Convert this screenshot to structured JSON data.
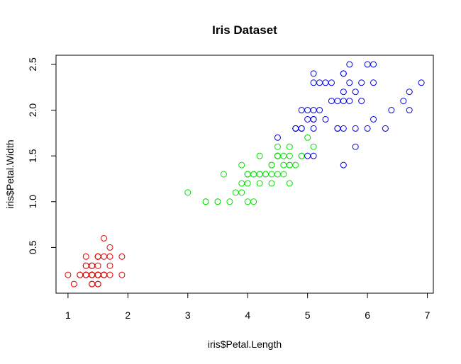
{
  "chart_data": {
    "type": "scatter",
    "title": "Iris Dataset",
    "xlabel": "iris$Petal.Length",
    "ylabel": "iris$Petal.Width",
    "xlim": [
      0.8,
      7.1
    ],
    "ylim": [
      0.0,
      2.6
    ],
    "xticks": [
      "1",
      "2",
      "3",
      "4",
      "5",
      "6",
      "7"
    ],
    "yticks": [
      "0.5",
      "1.0",
      "1.5",
      "2.0",
      "2.5"
    ],
    "grid": false,
    "legend": "none",
    "marker": "open-circle",
    "series": [
      {
        "color": "#e00000",
        "points": [
          [
            1.4,
            0.2
          ],
          [
            1.4,
            0.2
          ],
          [
            1.3,
            0.2
          ],
          [
            1.5,
            0.2
          ],
          [
            1.4,
            0.2
          ],
          [
            1.7,
            0.4
          ],
          [
            1.4,
            0.3
          ],
          [
            1.5,
            0.2
          ],
          [
            1.4,
            0.2
          ],
          [
            1.5,
            0.1
          ],
          [
            1.5,
            0.2
          ],
          [
            1.6,
            0.2
          ],
          [
            1.4,
            0.1
          ],
          [
            1.1,
            0.1
          ],
          [
            1.2,
            0.2
          ],
          [
            1.5,
            0.4
          ],
          [
            1.3,
            0.4
          ],
          [
            1.4,
            0.3
          ],
          [
            1.7,
            0.3
          ],
          [
            1.5,
            0.3
          ],
          [
            1.7,
            0.2
          ],
          [
            1.5,
            0.4
          ],
          [
            1.0,
            0.2
          ],
          [
            1.7,
            0.5
          ],
          [
            1.9,
            0.2
          ],
          [
            1.6,
            0.2
          ],
          [
            1.6,
            0.4
          ],
          [
            1.5,
            0.2
          ],
          [
            1.4,
            0.2
          ],
          [
            1.6,
            0.2
          ],
          [
            1.6,
            0.2
          ],
          [
            1.5,
            0.4
          ],
          [
            1.5,
            0.1
          ],
          [
            1.4,
            0.2
          ],
          [
            1.5,
            0.2
          ],
          [
            1.2,
            0.2
          ],
          [
            1.3,
            0.2
          ],
          [
            1.4,
            0.1
          ],
          [
            1.3,
            0.2
          ],
          [
            1.5,
            0.2
          ],
          [
            1.3,
            0.3
          ],
          [
            1.3,
            0.3
          ],
          [
            1.3,
            0.2
          ],
          [
            1.6,
            0.6
          ],
          [
            1.9,
            0.4
          ],
          [
            1.4,
            0.3
          ],
          [
            1.6,
            0.2
          ],
          [
            1.4,
            0.2
          ],
          [
            1.5,
            0.2
          ],
          [
            1.4,
            0.2
          ]
        ]
      },
      {
        "color": "#00e000",
        "points": [
          [
            4.7,
            1.4
          ],
          [
            4.5,
            1.5
          ],
          [
            4.9,
            1.5
          ],
          [
            4.0,
            1.3
          ],
          [
            4.6,
            1.5
          ],
          [
            4.5,
            1.3
          ],
          [
            4.7,
            1.6
          ],
          [
            3.3,
            1.0
          ],
          [
            4.6,
            1.3
          ],
          [
            3.9,
            1.4
          ],
          [
            3.5,
            1.0
          ],
          [
            4.2,
            1.5
          ],
          [
            4.0,
            1.0
          ],
          [
            4.7,
            1.4
          ],
          [
            3.6,
            1.3
          ],
          [
            4.4,
            1.4
          ],
          [
            4.5,
            1.5
          ],
          [
            4.1,
            1.0
          ],
          [
            4.5,
            1.5
          ],
          [
            3.9,
            1.1
          ],
          [
            4.8,
            1.8
          ],
          [
            4.0,
            1.3
          ],
          [
            4.9,
            1.5
          ],
          [
            4.7,
            1.2
          ],
          [
            4.3,
            1.3
          ],
          [
            4.4,
            1.4
          ],
          [
            4.8,
            1.4
          ],
          [
            5.0,
            1.7
          ],
          [
            4.5,
            1.5
          ],
          [
            3.5,
            1.0
          ],
          [
            3.8,
            1.1
          ],
          [
            3.7,
            1.0
          ],
          [
            3.9,
            1.2
          ],
          [
            5.1,
            1.6
          ],
          [
            4.5,
            1.5
          ],
          [
            4.5,
            1.6
          ],
          [
            4.7,
            1.5
          ],
          [
            4.4,
            1.3
          ],
          [
            4.1,
            1.3
          ],
          [
            4.0,
            1.3
          ],
          [
            4.4,
            1.2
          ],
          [
            4.6,
            1.4
          ],
          [
            4.0,
            1.2
          ],
          [
            3.3,
            1.0
          ],
          [
            4.2,
            1.3
          ],
          [
            4.2,
            1.2
          ],
          [
            4.2,
            1.3
          ],
          [
            4.3,
            1.3
          ],
          [
            3.0,
            1.1
          ],
          [
            4.1,
            1.3
          ]
        ]
      },
      {
        "color": "#0000e0",
        "points": [
          [
            6.0,
            2.5
          ],
          [
            5.1,
            1.9
          ],
          [
            5.9,
            2.1
          ],
          [
            5.6,
            1.8
          ],
          [
            5.8,
            2.2
          ],
          [
            6.6,
            2.1
          ],
          [
            4.5,
            1.7
          ],
          [
            6.3,
            1.8
          ],
          [
            5.8,
            1.8
          ],
          [
            6.1,
            2.5
          ],
          [
            5.1,
            2.0
          ],
          [
            5.3,
            1.9
          ],
          [
            5.5,
            2.1
          ],
          [
            5.0,
            2.0
          ],
          [
            5.1,
            2.4
          ],
          [
            5.3,
            2.3
          ],
          [
            5.5,
            1.8
          ],
          [
            6.7,
            2.2
          ],
          [
            6.9,
            2.3
          ],
          [
            5.0,
            1.5
          ],
          [
            5.7,
            2.3
          ],
          [
            4.9,
            2.0
          ],
          [
            6.7,
            2.0
          ],
          [
            4.9,
            1.8
          ],
          [
            5.7,
            2.1
          ],
          [
            6.0,
            1.8
          ],
          [
            4.8,
            1.8
          ],
          [
            4.9,
            1.8
          ],
          [
            5.6,
            2.1
          ],
          [
            5.8,
            1.6
          ],
          [
            6.1,
            1.9
          ],
          [
            6.4,
            2.0
          ],
          [
            5.6,
            2.2
          ],
          [
            5.1,
            1.5
          ],
          [
            5.6,
            1.4
          ],
          [
            6.1,
            2.3
          ],
          [
            5.6,
            2.4
          ],
          [
            5.5,
            1.8
          ],
          [
            4.8,
            1.8
          ],
          [
            5.4,
            2.1
          ],
          [
            5.6,
            2.4
          ],
          [
            5.1,
            2.3
          ],
          [
            5.1,
            1.9
          ],
          [
            5.9,
            2.3
          ],
          [
            5.7,
            2.5
          ],
          [
            5.2,
            2.3
          ],
          [
            5.0,
            1.9
          ],
          [
            5.2,
            2.0
          ],
          [
            5.4,
            2.3
          ],
          [
            5.1,
            1.8
          ]
        ]
      }
    ]
  }
}
